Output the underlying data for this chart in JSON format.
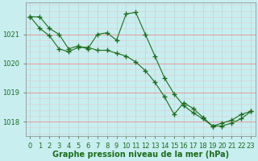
{
  "series1": {
    "x": [
      0,
      1,
      2,
      3,
      4,
      5,
      6,
      7,
      8,
      9,
      10,
      11,
      12,
      13,
      14,
      15,
      16,
      17,
      18,
      19,
      20,
      21,
      22,
      23
    ],
    "y": [
      1021.6,
      1021.6,
      1021.2,
      1021.0,
      1020.5,
      1020.6,
      1020.5,
      1021.0,
      1021.05,
      1020.8,
      1021.7,
      1021.75,
      1021.0,
      1020.25,
      1019.5,
      1018.95,
      1018.55,
      1018.3,
      1018.1,
      1017.85,
      1017.95,
      1018.05,
      1018.25,
      1018.35
    ]
  },
  "series2": {
    "x": [
      0,
      1,
      2,
      3,
      4,
      5,
      6,
      7,
      8,
      9,
      10,
      11,
      12,
      13,
      14,
      15,
      16,
      17,
      18,
      19,
      20,
      21,
      22,
      23
    ],
    "y": [
      1021.6,
      1021.2,
      1020.95,
      1020.5,
      1020.4,
      1020.55,
      1020.55,
      1020.45,
      1020.45,
      1020.35,
      1020.25,
      1020.05,
      1019.75,
      1019.35,
      1018.85,
      1018.25,
      1018.65,
      1018.45,
      1018.15,
      1017.85,
      1017.85,
      1017.95,
      1018.1,
      1018.35
    ]
  },
  "line_color": "#1a6e1a",
  "marker": "+",
  "markersize": 4,
  "markeredgewidth": 1.0,
  "linewidth": 0.8,
  "bg_color": "#c8eef0",
  "grid_major_h_color": "#e8a0a0",
  "grid_minor_h_color": "#e8c8c8",
  "grid_major_v_color": "#b0d8da",
  "grid_minor_v_color": "#c0e0e2",
  "xlabel": "Graphe pression niveau de la mer (hPa)",
  "xlabel_fontsize": 7,
  "xlabel_color": "#1a6e1a",
  "ylim": [
    1017.5,
    1022.1
  ],
  "yticks": [
    1018,
    1019,
    1020,
    1021
  ],
  "xticks": [
    0,
    1,
    2,
    3,
    4,
    5,
    6,
    7,
    8,
    9,
    10,
    11,
    12,
    13,
    14,
    15,
    16,
    17,
    18,
    19,
    20,
    21,
    22,
    23
  ],
  "tick_fontsize": 6,
  "tick_color": "#1a6e1a",
  "figsize": [
    3.2,
    2.0
  ],
  "dpi": 100
}
